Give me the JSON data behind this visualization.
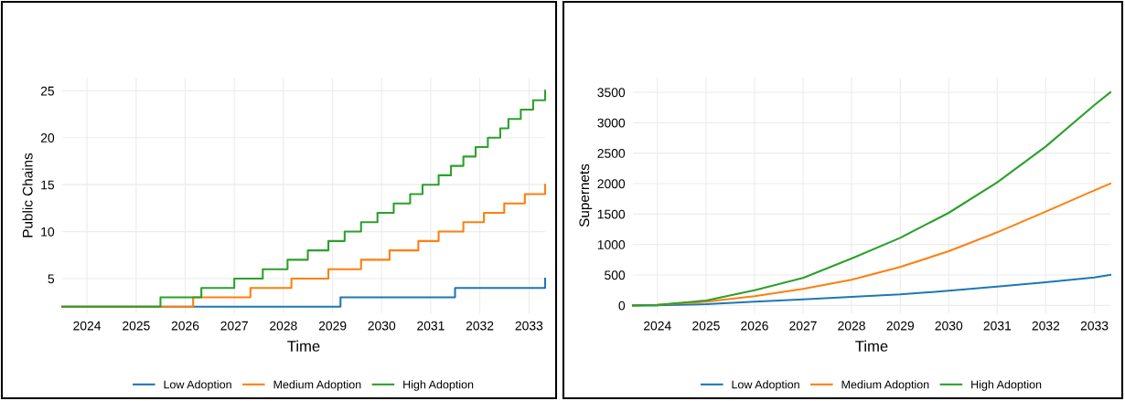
{
  "chart_data": [
    {
      "type": "step",
      "xlabel": "Time",
      "ylabel": "Public Chains",
      "xlim": [
        "2023-07",
        "2033-05"
      ],
      "xticks": [
        "2024",
        "2025",
        "2026",
        "2027",
        "2028",
        "2029",
        "2030",
        "2031",
        "2032",
        "2033"
      ],
      "ylim": [
        1.3,
        26.4
      ],
      "yticks": [
        5,
        10,
        15,
        20,
        25
      ],
      "grid": true,
      "legend": "bottom",
      "series": [
        {
          "name": "Low Adoption",
          "color": "#1f77b4",
          "x": [
            "2023-07",
            "2029-03",
            "2031-07",
            "2033-05"
          ],
          "values": [
            2,
            3,
            4,
            5
          ]
        },
        {
          "name": "Medium Adoption",
          "color": "#ff7f0e",
          "x": [
            "2023-07",
            "2026-03",
            "2027-05",
            "2028-03",
            "2028-12",
            "2029-08",
            "2030-03",
            "2030-10",
            "2031-03",
            "2031-09",
            "2032-02",
            "2032-07",
            "2032-12",
            "2033-05"
          ],
          "values": [
            2,
            3,
            4,
            5,
            6,
            7,
            8,
            9,
            10,
            11,
            12,
            13,
            14,
            15
          ]
        },
        {
          "name": "High Adoption",
          "color": "#2ca02c",
          "x": [
            "2023-07",
            "2025-07",
            "2026-05",
            "2027-01",
            "2027-08",
            "2028-02",
            "2028-07",
            "2028-12",
            "2029-04",
            "2029-08",
            "2029-12",
            "2030-04",
            "2030-08",
            "2030-11",
            "2031-03",
            "2031-06",
            "2031-09",
            "2031-12",
            "2032-03",
            "2032-06",
            "2032-08",
            "2032-11",
            "2033-02",
            "2033-05"
          ],
          "values": [
            2,
            3,
            4,
            5,
            6,
            7,
            8,
            9,
            10,
            11,
            12,
            13,
            14,
            15,
            16,
            17,
            18,
            19,
            20,
            21,
            22,
            23,
            24,
            25
          ]
        }
      ]
    },
    {
      "type": "line",
      "xlabel": "Time",
      "ylabel": "Supernets",
      "xlim": [
        "2023-07",
        "2033-05"
      ],
      "xticks": [
        "2024",
        "2025",
        "2026",
        "2027",
        "2028",
        "2029",
        "2030",
        "2031",
        "2032",
        "2033"
      ],
      "ylim": [
        -130,
        3740
      ],
      "yticks": [
        0,
        500,
        1000,
        1500,
        2000,
        2500,
        3000,
        3500
      ],
      "grid": true,
      "legend": "bottom",
      "x": [
        "2023-07",
        "2024",
        "2025",
        "2026",
        "2027",
        "2028",
        "2029",
        "2030",
        "2031",
        "2032",
        "2033",
        "2033-05"
      ],
      "series": [
        {
          "name": "Low Adoption",
          "color": "#1f77b4",
          "values": [
            0,
            0,
            20,
            60,
            100,
            140,
            180,
            240,
            310,
            380,
            460,
            500
          ]
        },
        {
          "name": "Medium Adoption",
          "color": "#ff7f0e",
          "values": [
            0,
            10,
            60,
            150,
            270,
            420,
            630,
            890,
            1200,
            1540,
            1890,
            2000
          ]
        },
        {
          "name": "High Adoption",
          "color": "#2ca02c",
          "values": [
            0,
            10,
            80,
            250,
            450,
            770,
            1110,
            1520,
            2020,
            2610,
            3290,
            3500
          ]
        }
      ]
    }
  ]
}
